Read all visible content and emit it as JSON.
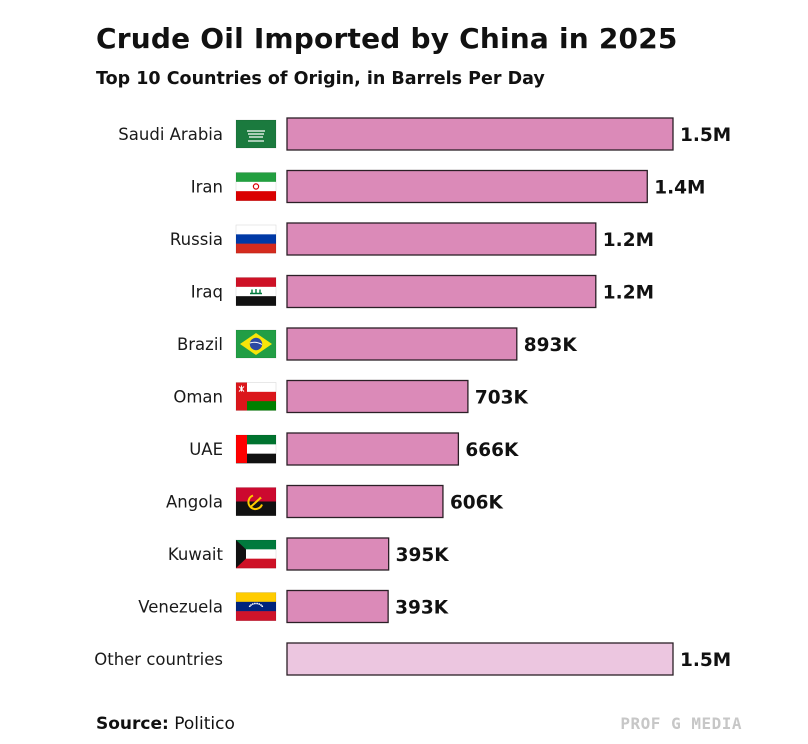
{
  "title": "Crude Oil Imported by China in 2025",
  "subtitle": "Top 10 Countries of Origin, in Barrels Per Day",
  "footer": {
    "source_label": "Source:",
    "source_value": "Politico",
    "brand": "PROF G MEDIA"
  },
  "colors": {
    "bar": "#db8ab8",
    "bar_other": "#ecc6e0",
    "bar_border": "#2b1f26"
  },
  "chart_data": {
    "type": "bar",
    "orientation": "horizontal",
    "unit": "barrels per day",
    "categories": [
      "Saudi Arabia",
      "Iran",
      "Russia",
      "Iraq",
      "Brazil",
      "Oman",
      "UAE",
      "Angola",
      "Kuwait",
      "Venezuela",
      "Other countries"
    ],
    "values": [
      1500000,
      1400000,
      1200000,
      1200000,
      893000,
      703000,
      666000,
      606000,
      395000,
      393000,
      1500000
    ],
    "value_labels": [
      "1.5M",
      "1.4M",
      "1.2M",
      "1.2M",
      "893K",
      "703K",
      "666K",
      "606K",
      "395K",
      "393K",
      "1.5M"
    ],
    "flags": [
      "saudi-arabia-flag",
      "iran-flag",
      "russia-flag",
      "iraq-flag",
      "brazil-flag",
      "oman-flag",
      "uae-flag",
      "angola-flag",
      "kuwait-flag",
      "venezuela-flag",
      null
    ],
    "xlim": [
      0,
      1500000
    ],
    "grid": false,
    "legend": "none"
  }
}
